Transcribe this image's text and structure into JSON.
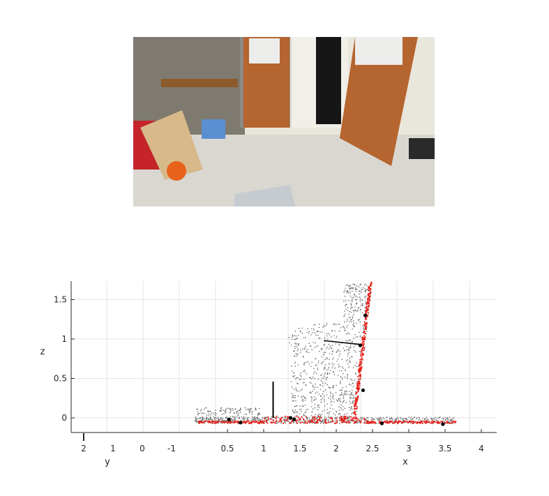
{
  "photo": {
    "description_icon": "rgb-photo-icon",
    "colors": {
      "floor": "#d9d7d0",
      "door": "#b5652f",
      "wall": "#e9e6dc",
      "frame": "#8d8a86"
    }
  },
  "chart_data": {
    "type": "scatter",
    "title": "",
    "axes": {
      "x": {
        "label": "x",
        "ticks": [
          "0.5",
          "1",
          "1.5",
          "2",
          "2.5",
          "3",
          "3.5",
          "4"
        ],
        "range": [
          0,
          4.2
        ]
      },
      "y": {
        "label": "y",
        "ticks": [
          "2",
          "1",
          "0",
          "-1"
        ]
      },
      "z": {
        "label": "z",
        "ticks": [
          "0",
          "0.5",
          "1",
          "1.5"
        ],
        "range": [
          -0.2,
          1.75
        ]
      }
    },
    "grid": true,
    "colors": {
      "cloud": "#6b6b6b",
      "floor_fit": "#e8201a",
      "markers": "#000000",
      "grid": "#dcdcdc"
    },
    "series": [
      {
        "points_xz": [
          [
            0.3,
            -0.02
          ],
          [
            0.6,
            0.0
          ],
          [
            1.0,
            0.02
          ],
          [
            1.4,
            0.05
          ],
          [
            1.8,
            0.08
          ],
          [
            2.0,
            0.1
          ],
          [
            2.2,
            0.15
          ],
          [
            2.3,
            0.3
          ],
          [
            2.35,
            0.6
          ],
          [
            2.4,
            1.0
          ],
          [
            2.45,
            1.4
          ],
          [
            2.5,
            1.7
          ]
        ]
      },
      {
        "points_xz": [
          [
            0.7,
            -0.06
          ],
          [
            1.2,
            -0.06
          ],
          [
            1.6,
            -0.06
          ],
          [
            2.0,
            -0.06
          ],
          [
            2.3,
            -0.06
          ],
          [
            2.6,
            -0.07
          ],
          [
            3.0,
            -0.07
          ],
          [
            3.4,
            -0.08
          ],
          [
            3.65,
            -0.08
          ],
          [
            2.27,
            0.0
          ],
          [
            2.3,
            0.4
          ],
          [
            2.33,
            0.8
          ],
          [
            2.36,
            1.2
          ],
          [
            2.42,
            1.6
          ],
          [
            2.47,
            1.72
          ]
        ]
      },
      {
        "points_xz": [
          [
            0.52,
            -0.02
          ],
          [
            0.68,
            -0.06
          ],
          [
            1.37,
            0.0
          ],
          [
            1.42,
            -0.02
          ],
          [
            2.33,
            0.92
          ],
          [
            2.37,
            0.35
          ],
          [
            2.4,
            1.3
          ],
          [
            2.63,
            -0.07
          ],
          [
            3.47,
            -0.08
          ]
        ]
      }
    ]
  }
}
